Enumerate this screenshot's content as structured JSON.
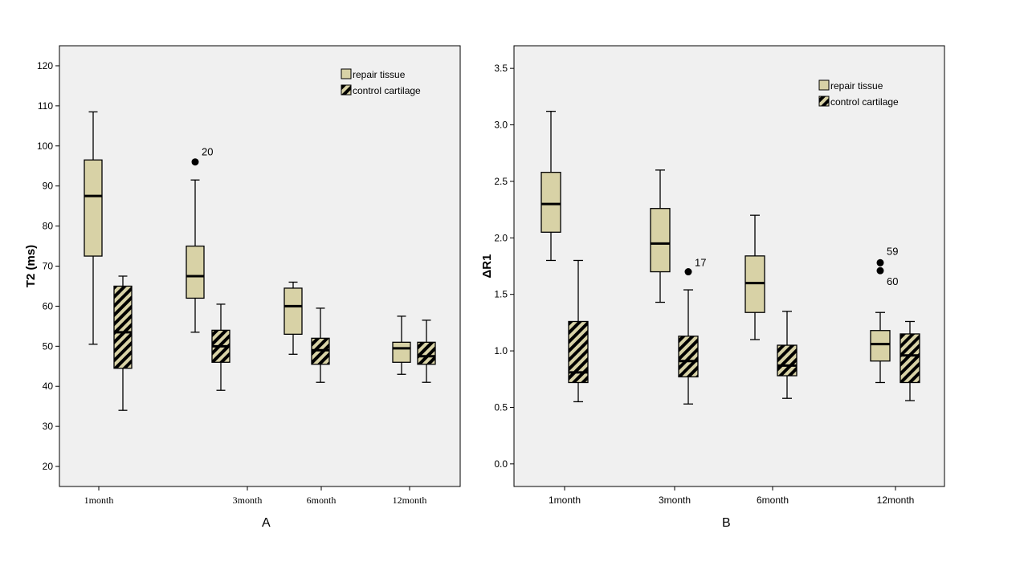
{
  "chart_data": [
    {
      "type": "boxplot",
      "panel_label": "A",
      "ylabel": "T2 (ms)",
      "ylim": [
        15,
        125
      ],
      "yticks": [
        20,
        30,
        40,
        50,
        60,
        70,
        80,
        90,
        100,
        110,
        120
      ],
      "categories": [
        "1month",
        "3month",
        "6month",
        "12month"
      ],
      "legend": [
        "repair tissue",
        "control cartilage"
      ],
      "series": [
        {
          "name": "repair tissue",
          "pattern": "solid",
          "boxes": [
            {
              "min": 50.5,
              "q1": 72.5,
              "median": 87.5,
              "q3": 96.5,
              "max": 108.5
            },
            {
              "min": 53.5,
              "q1": 62,
              "median": 67.5,
              "q3": 75,
              "max": 91.5
            },
            {
              "min": 48,
              "q1": 53,
              "median": 60,
              "q3": 64.5,
              "max": 66
            },
            {
              "min": 43,
              "q1": 46,
              "median": 49.5,
              "q3": 51,
              "max": 57.5
            }
          ]
        },
        {
          "name": "control cartilage",
          "pattern": "hatched",
          "boxes": [
            {
              "min": 34,
              "q1": 44.5,
              "median": 53.5,
              "q3": 65,
              "max": 67.5
            },
            {
              "min": 39,
              "q1": 46,
              "median": 50,
              "q3": 54,
              "max": 60.5
            },
            {
              "min": 41,
              "q1": 45.5,
              "median": 49,
              "q3": 52,
              "max": 59.5
            },
            {
              "min": 41,
              "q1": 45.5,
              "median": 47.5,
              "q3": 51,
              "max": 56.5
            }
          ]
        }
      ],
      "outliers": [
        {
          "category": "3month",
          "series": "repair tissue",
          "value": 96,
          "label": "20"
        }
      ]
    },
    {
      "type": "boxplot",
      "panel_label": "B",
      "ylabel": "ΔR1",
      "ylim": [
        -0.2,
        3.7
      ],
      "yticks": [
        0.0,
        0.5,
        1.0,
        1.5,
        2.0,
        2.5,
        3.0,
        3.5
      ],
      "categories": [
        "1month",
        "3month",
        "6month",
        "12month"
      ],
      "legend": [
        "repair tissue",
        "control cartilage"
      ],
      "series": [
        {
          "name": "repair tissue",
          "pattern": "solid",
          "boxes": [
            {
              "min": 1.8,
              "q1": 2.05,
              "median": 2.3,
              "q3": 2.58,
              "max": 3.12
            },
            {
              "min": 1.43,
              "q1": 1.7,
              "median": 1.95,
              "q3": 2.26,
              "max": 2.6
            },
            {
              "min": 1.1,
              "q1": 1.34,
              "median": 1.6,
              "q3": 1.84,
              "max": 2.2
            },
            {
              "min": 0.72,
              "q1": 0.91,
              "median": 1.06,
              "q3": 1.18,
              "max": 1.34
            }
          ]
        },
        {
          "name": "control cartilage",
          "pattern": "hatched",
          "boxes": [
            {
              "min": 0.55,
              "q1": 0.72,
              "median": 0.81,
              "q3": 1.26,
              "max": 1.8
            },
            {
              "min": 0.53,
              "q1": 0.77,
              "median": 0.91,
              "q3": 1.13,
              "max": 1.54
            },
            {
              "min": 0.58,
              "q1": 0.78,
              "median": 0.87,
              "q3": 1.05,
              "max": 1.35
            },
            {
              "min": 0.56,
              "q1": 0.72,
              "median": 0.96,
              "q3": 1.15,
              "max": 1.26
            }
          ]
        }
      ],
      "outliers": [
        {
          "category": "3month",
          "series": "control cartilage",
          "value": 1.7,
          "label": "17"
        },
        {
          "category": "12month",
          "series": "repair tissue",
          "value": 1.78,
          "label": "59"
        },
        {
          "category": "12month",
          "series": "repair tissue",
          "value": 1.71,
          "label": "60"
        }
      ]
    }
  ],
  "colors": {
    "plot_background": "#f0f0f0",
    "repair_fill": "#d8d2a6",
    "hatch_fill": "#d8d2a6",
    "hatch_stroke": "#000000",
    "axis": "#000000"
  }
}
